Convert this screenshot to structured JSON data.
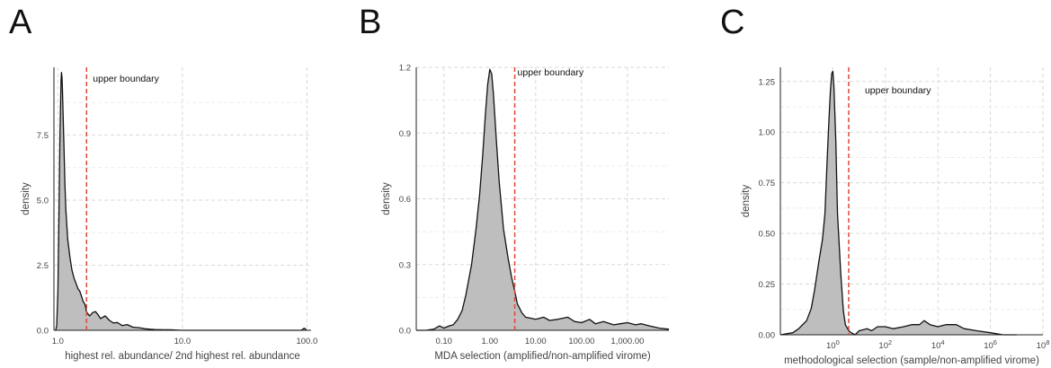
{
  "chart_data": [
    {
      "type": "area",
      "panel": "A",
      "xlabel": "highest rel. abundance/ 2nd highest rel. abundance",
      "ylabel": "density",
      "x_scale": "log10",
      "xlim": [
        0.93,
        108
      ],
      "ylim": [
        0,
        10.1
      ],
      "xticks": [
        1,
        10,
        100
      ],
      "xtick_labels": [
        "1.0",
        "10.0",
        "100.0"
      ],
      "yticks": [
        0,
        2.5,
        5,
        7.5
      ],
      "ytick_labels": [
        "0.0",
        "2.5",
        "5.0",
        "7.5"
      ],
      "boundary": 1.7,
      "annotation": "upper boundary",
      "fill": "#bebebe",
      "line_color": "#111111",
      "boundary_color": "#e0473a",
      "x": [
        0.96,
        0.98,
        1.0,
        1.02,
        1.04,
        1.06,
        1.07,
        1.08,
        1.09,
        1.1,
        1.12,
        1.14,
        1.16,
        1.2,
        1.25,
        1.3,
        1.35,
        1.4,
        1.45,
        1.5,
        1.55,
        1.6,
        1.65,
        1.7,
        1.8,
        1.9,
        2.0,
        2.1,
        2.2,
        2.4,
        2.6,
        2.8,
        3.0,
        3.3,
        3.6,
        4.0,
        4.5,
        5.0,
        5.5,
        6.0,
        7.0,
        8.0,
        10.0,
        15.0,
        30.0,
        60.0,
        90.0,
        95.0,
        100.0
      ],
      "y": [
        0.0,
        0.2,
        1.5,
        4.5,
        7.5,
        9.6,
        9.9,
        9.7,
        9.2,
        8.4,
        7.0,
        5.6,
        4.6,
        3.5,
        2.8,
        2.3,
        2.0,
        1.8,
        1.6,
        1.5,
        1.3,
        1.1,
        1.0,
        0.7,
        0.55,
        0.68,
        0.72,
        0.6,
        0.45,
        0.55,
        0.38,
        0.28,
        0.3,
        0.18,
        0.22,
        0.12,
        0.1,
        0.06,
        0.04,
        0.03,
        0.02,
        0.02,
        0.0,
        0.0,
        0.0,
        0.0,
        0.0,
        0.08,
        0.0
      ]
    },
    {
      "type": "area",
      "panel": "B",
      "xlabel": "MDA selection (amplified/non-amplified virome)",
      "ylabel": "density",
      "x_scale": "log10",
      "xlim": [
        0.025,
        8000
      ],
      "ylim": [
        0,
        1.2
      ],
      "xticks": [
        0.1,
        1,
        10,
        100,
        1000
      ],
      "xtick_labels": [
        "0.10",
        "1.00",
        "10.00",
        "100.00",
        "1,000.00"
      ],
      "yticks": [
        0,
        0.3,
        0.6,
        0.9,
        1.2
      ],
      "ytick_labels": [
        "0.0",
        "0.3",
        "0.6",
        "0.9",
        "1.2"
      ],
      "boundary": 3.5,
      "annotation": "upper boundary",
      "fill": "#bebebe",
      "line_color": "#111111",
      "boundary_color": "#e0473a",
      "x": [
        0.025,
        0.04,
        0.06,
        0.08,
        0.1,
        0.13,
        0.16,
        0.2,
        0.25,
        0.3,
        0.4,
        0.5,
        0.6,
        0.7,
        0.8,
        0.9,
        1.0,
        1.1,
        1.2,
        1.4,
        1.6,
        2.0,
        2.5,
        3.0,
        3.5,
        4.0,
        5.0,
        6.0,
        8.0,
        10.0,
        15.0,
        20.0,
        30.0,
        50.0,
        70.0,
        100.0,
        150.0,
        200.0,
        300.0,
        500.0,
        700.0,
        1000.0,
        1500.0,
        2000.0,
        3000.0,
        5000.0,
        8000.0
      ],
      "y": [
        0.0,
        0.0,
        0.005,
        0.02,
        0.01,
        0.02,
        0.025,
        0.05,
        0.09,
        0.16,
        0.3,
        0.46,
        0.62,
        0.8,
        0.98,
        1.12,
        1.19,
        1.17,
        1.08,
        0.86,
        0.68,
        0.46,
        0.33,
        0.24,
        0.18,
        0.12,
        0.08,
        0.06,
        0.055,
        0.05,
        0.06,
        0.045,
        0.05,
        0.06,
        0.04,
        0.035,
        0.05,
        0.03,
        0.04,
        0.025,
        0.03,
        0.035,
        0.025,
        0.03,
        0.02,
        0.01,
        0.005
      ]
    },
    {
      "type": "area",
      "panel": "C",
      "xlabel": "methodological selection (sample/non-amplified virome)",
      "ylabel": "density",
      "x_scale": "log10",
      "xlim": [
        0.01,
        100000000
      ],
      "ylim": [
        0,
        1.32
      ],
      "xticks": [
        1,
        100,
        10000,
        1000000,
        100000000
      ],
      "xtick_base": "10",
      "xtick_exponents": [
        "0",
        "2",
        "4",
        "6",
        "8"
      ],
      "yticks": [
        0,
        0.25,
        0.5,
        0.75,
        1.0,
        1.25
      ],
      "ytick_labels": [
        "0.00",
        "0.25",
        "0.50",
        "0.75",
        "1.00",
        "1.25"
      ],
      "boundary": 4.0,
      "annotation": "upper boundary",
      "fill": "#bebebe",
      "line_color": "#111111",
      "boundary_color": "#e0473a",
      "x": [
        0.01,
        0.03,
        0.05,
        0.1,
        0.15,
        0.2,
        0.3,
        0.4,
        0.5,
        0.6,
        0.7,
        0.8,
        0.9,
        1.0,
        1.1,
        1.3,
        1.5,
        2.0,
        2.5,
        3.0,
        4.0,
        5.0,
        7.0,
        10.0,
        20.0,
        30.0,
        50.0,
        100.0,
        200.0,
        500.0,
        1000.0,
        2000.0,
        3000.0,
        5000.0,
        10000.0,
        20000.0,
        50000.0,
        100000.0,
        300000.0,
        1000000.0,
        3000000.0,
        10000000.0
      ],
      "y": [
        0.0,
        0.01,
        0.03,
        0.07,
        0.13,
        0.22,
        0.37,
        0.47,
        0.6,
        0.85,
        1.05,
        1.2,
        1.29,
        1.3,
        1.22,
        0.95,
        0.6,
        0.3,
        0.12,
        0.05,
        0.02,
        0.01,
        0.0,
        0.02,
        0.03,
        0.02,
        0.04,
        0.04,
        0.03,
        0.04,
        0.05,
        0.05,
        0.07,
        0.05,
        0.04,
        0.05,
        0.05,
        0.03,
        0.02,
        0.01,
        0.0,
        0.0
      ]
    }
  ],
  "panels": [
    {
      "letter": "A"
    },
    {
      "letter": "B"
    },
    {
      "letter": "C"
    }
  ]
}
